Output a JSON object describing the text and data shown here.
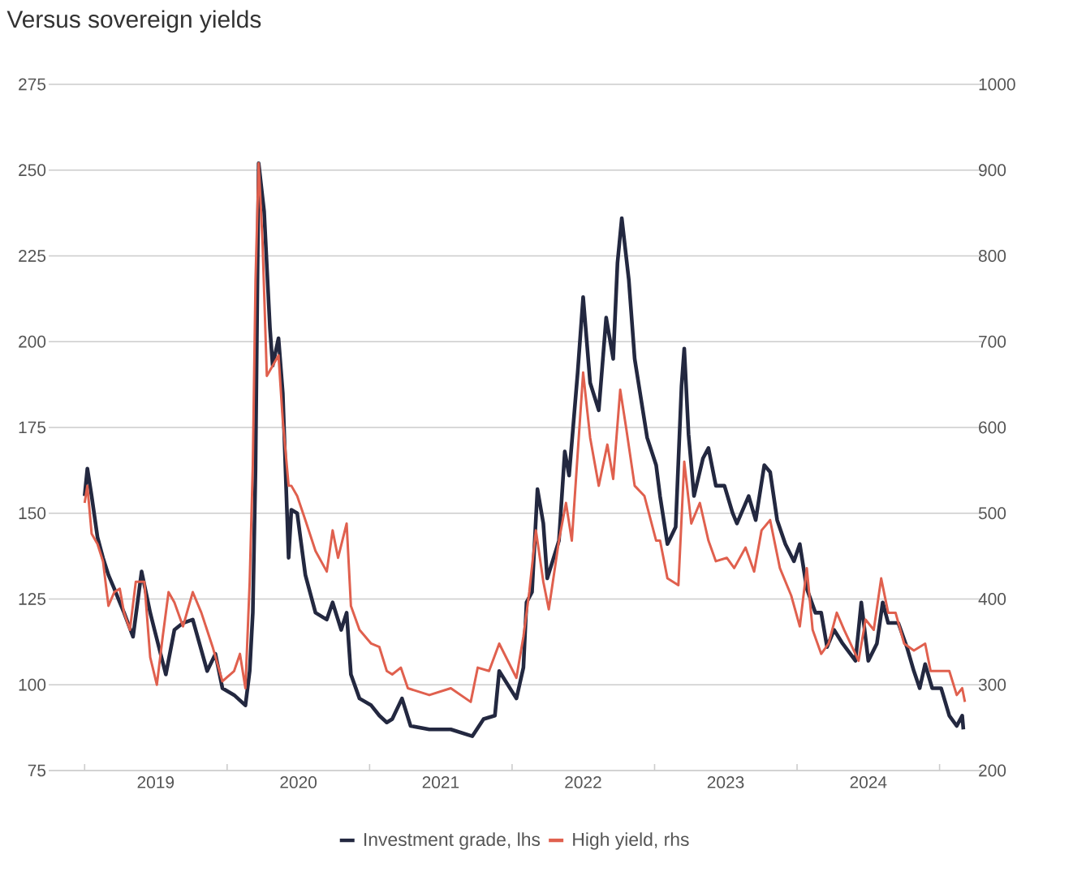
{
  "chart_data": {
    "type": "line",
    "title": "Versus sovereign yields",
    "xlim": [
      "2018-10-01",
      "2025-04-20"
    ],
    "xticks": [
      {
        "value": "2019-01-01",
        "label": null
      },
      {
        "value": "2019-07-02",
        "label": "2019"
      },
      {
        "value": "2020-01-01",
        "label": null
      },
      {
        "value": "2020-07-02",
        "label": "2020"
      },
      {
        "value": "2021-01-01",
        "label": null
      },
      {
        "value": "2021-07-02",
        "label": "2021"
      },
      {
        "value": "2022-01-01",
        "label": null
      },
      {
        "value": "2022-07-02",
        "label": "2022"
      },
      {
        "value": "2023-01-01",
        "label": null
      },
      {
        "value": "2023-07-02",
        "label": "2023"
      },
      {
        "value": "2024-01-01",
        "label": null
      },
      {
        "value": "2024-07-02",
        "label": "2024"
      },
      {
        "value": "2025-01-01",
        "label": null
      }
    ],
    "ylim": [
      75,
      275
    ],
    "yticks": [
      75,
      100,
      125,
      150,
      175,
      200,
      225,
      250,
      275
    ],
    "y2lim": [
      200,
      1000
    ],
    "y2ticks": [
      200,
      300,
      400,
      500,
      600,
      700,
      800,
      900,
      1000
    ],
    "grid": "y",
    "legend": "bottom",
    "line_style": "solid",
    "marker": "none",
    "series": [
      {
        "name": "Investment grade, lhs",
        "color": "#232840",
        "x": [
          "2019-01-01",
          "2019-01-08",
          "2019-01-19",
          "2019-02-03",
          "2019-02-17",
          "2019-03-03",
          "2019-03-18",
          "2019-04-01",
          "2019-04-12",
          "2019-05-05",
          "2019-05-27",
          "2019-06-18",
          "2019-06-29",
          "2019-07-28",
          "2019-08-19",
          "2019-09-10",
          "2019-10-05",
          "2019-11-11",
          "2019-12-02",
          "2019-12-20",
          "2020-01-19",
          "2020-02-17",
          "2020-02-28",
          "2020-03-07",
          "2020-03-14",
          "2020-03-22",
          "2020-04-05",
          "2020-04-20",
          "2020-04-27",
          "2020-05-12",
          "2020-05-23",
          "2020-06-07",
          "2020-06-14",
          "2020-06-29",
          "2020-07-20",
          "2020-08-15",
          "2020-09-13",
          "2020-09-28",
          "2020-10-20",
          "2020-11-03",
          "2020-11-14",
          "2020-12-06",
          "2021-01-05",
          "2021-01-26",
          "2021-02-14",
          "2021-02-28",
          "2021-03-25",
          "2021-04-16",
          "2021-06-03",
          "2021-07-28",
          "2021-09-21",
          "2021-10-20",
          "2021-11-18",
          "2021-11-29",
          "2022-01-12",
          "2022-01-30",
          "2022-02-07",
          "2022-02-21",
          "2022-03-07",
          "2022-03-22",
          "2022-04-01",
          "2022-05-01",
          "2022-05-16",
          "2022-05-27",
          "2022-06-18",
          "2022-07-02",
          "2022-07-20",
          "2022-08-11",
          "2022-08-30",
          "2022-09-17",
          "2022-09-28",
          "2022-10-09",
          "2022-10-27",
          "2022-11-11",
          "2022-12-13",
          "2023-01-05",
          "2023-01-15",
          "2023-02-03",
          "2023-02-24",
          "2023-03-11",
          "2023-03-18",
          "2023-03-29",
          "2023-04-12",
          "2023-05-05",
          "2023-05-19",
          "2023-06-07",
          "2023-06-29",
          "2023-07-20",
          "2023-07-31",
          "2023-08-30",
          "2023-09-17",
          "2023-10-09",
          "2023-10-24",
          "2023-11-11",
          "2023-12-02",
          "2023-12-24",
          "2024-01-08",
          "2024-01-26",
          "2024-02-17",
          "2024-03-03",
          "2024-03-18",
          "2024-04-05",
          "2024-04-27",
          "2024-05-30",
          "2024-06-14",
          "2024-07-02",
          "2024-07-24",
          "2024-08-08",
          "2024-08-22",
          "2024-09-17",
          "2024-10-09",
          "2024-10-27",
          "2024-11-11",
          "2024-11-25",
          "2024-12-13",
          "2025-01-05",
          "2025-01-26",
          "2025-02-14",
          "2025-02-28",
          "2025-03-03"
        ],
        "values": [
          155,
          163,
          155,
          143,
          137,
          132,
          128,
          124,
          121,
          114,
          133,
          121,
          116,
          103,
          116,
          118,
          119,
          104,
          109,
          99,
          97,
          94,
          104,
          121,
          163,
          252,
          238,
          204,
          193,
          201,
          185,
          137,
          151,
          150,
          132,
          121,
          119,
          124,
          116,
          121,
          103,
          96,
          94,
          91,
          89,
          90,
          96,
          88,
          87,
          87,
          85,
          90,
          91,
          104,
          96,
          105,
          124,
          127,
          157,
          147,
          131,
          142,
          168,
          161,
          191,
          213,
          188,
          180,
          207,
          195,
          223,
          236,
          218,
          195,
          172,
          164,
          155,
          141,
          146,
          187,
          198,
          173,
          155,
          166,
          169,
          158,
          158,
          150,
          147,
          155,
          148,
          164,
          162,
          148,
          141,
          136,
          141,
          128,
          121,
          121,
          111,
          116,
          112,
          107,
          124,
          107,
          112,
          124,
          118,
          118,
          111,
          104,
          99,
          106,
          99,
          99,
          91,
          88,
          91,
          87
        ]
      },
      {
        "name": "High yield, rhs",
        "color": "#e0604e",
        "axis": "y2",
        "x": [
          "2019-01-01",
          "2019-01-08",
          "2019-01-19",
          "2019-02-03",
          "2019-02-17",
          "2019-03-03",
          "2019-03-18",
          "2019-04-01",
          "2019-04-12",
          "2019-04-27",
          "2019-05-12",
          "2019-06-03",
          "2019-06-18",
          "2019-07-05",
          "2019-07-20",
          "2019-08-04",
          "2019-08-19",
          "2019-09-10",
          "2019-10-05",
          "2019-10-27",
          "2019-11-25",
          "2019-12-20",
          "2020-01-19",
          "2020-02-03",
          "2020-02-17",
          "2020-02-28",
          "2020-03-07",
          "2020-03-14",
          "2020-03-22",
          "2020-04-01",
          "2020-04-12",
          "2020-04-27",
          "2020-05-12",
          "2020-05-23",
          "2020-06-07",
          "2020-06-14",
          "2020-06-29",
          "2020-07-20",
          "2020-08-15",
          "2020-09-13",
          "2020-09-28",
          "2020-10-12",
          "2020-11-03",
          "2020-11-14",
          "2020-12-06",
          "2021-01-05",
          "2021-01-26",
          "2021-02-14",
          "2021-02-28",
          "2021-03-22",
          "2021-04-09",
          "2021-06-03",
          "2021-07-28",
          "2021-09-17",
          "2021-10-05",
          "2021-11-03",
          "2021-11-29",
          "2022-01-12",
          "2022-01-30",
          "2022-02-14",
          "2022-03-03",
          "2022-03-22",
          "2022-04-05",
          "2022-05-01",
          "2022-05-19",
          "2022-06-03",
          "2022-07-02",
          "2022-07-20",
          "2022-08-11",
          "2022-09-02",
          "2022-09-17",
          "2022-10-05",
          "2022-10-20",
          "2022-11-11",
          "2022-12-06",
          "2023-01-05",
          "2023-01-15",
          "2023-02-03",
          "2023-03-03",
          "2023-03-18",
          "2023-04-05",
          "2023-04-27",
          "2023-05-19",
          "2023-06-07",
          "2023-07-05",
          "2023-07-24",
          "2023-08-22",
          "2023-09-13",
          "2023-10-02",
          "2023-10-24",
          "2023-11-18",
          "2023-12-17",
          "2024-01-08",
          "2024-01-26",
          "2024-02-10",
          "2024-03-03",
          "2024-03-22",
          "2024-04-12",
          "2024-05-01",
          "2024-06-07",
          "2024-06-25",
          "2024-07-16",
          "2024-08-04",
          "2024-08-22",
          "2024-09-10",
          "2024-10-02",
          "2024-10-27",
          "2024-11-25",
          "2024-12-09",
          "2025-01-05",
          "2025-01-26",
          "2025-02-14",
          "2025-02-28",
          "2025-03-07"
        ],
        "values": [
          512,
          532,
          476,
          464,
          444,
          392,
          408,
          412,
          384,
          364,
          420,
          420,
          332,
          300,
          356,
          408,
          396,
          368,
          408,
          384,
          344,
          304,
          316,
          336,
          296,
          420,
          556,
          772,
          908,
          816,
          660,
          672,
          684,
          608,
          532,
          532,
          520,
          492,
          456,
          432,
          480,
          448,
          488,
          392,
          364,
          348,
          344,
          316,
          312,
          320,
          296,
          288,
          296,
          280,
          320,
          316,
          348,
          308,
          356,
          408,
          480,
          420,
          388,
          468,
          512,
          468,
          664,
          588,
          532,
          580,
          540,
          644,
          600,
          532,
          520,
          468,
          468,
          424,
          416,
          560,
          488,
          512,
          468,
          444,
          448,
          436,
          460,
          432,
          480,
          492,
          436,
          404,
          368,
          436,
          364,
          336,
          348,
          384,
          364,
          328,
          376,
          364,
          424,
          384,
          384,
          348,
          340,
          348,
          316,
          316,
          316,
          288,
          296,
          280
        ]
      }
    ]
  }
}
